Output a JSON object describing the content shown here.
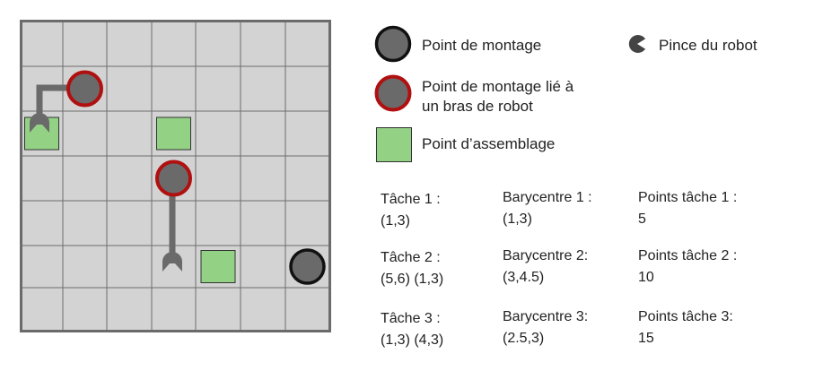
{
  "grid": {
    "cols": 7,
    "rows": 7
  },
  "colors": {
    "cell": "#d3d3d3",
    "gridline": "#6e6e6e",
    "border": "#6b6b6b",
    "mount_fill": "#6a6a6a",
    "mount_ring_free": "#111111",
    "mount_ring_linked": "#b01010",
    "assembly_fill": "#93d285",
    "arm": "#6a6a6a"
  },
  "board_items": {
    "mounts": [
      {
        "col": 1,
        "row": 1,
        "linked": true
      },
      {
        "col": 3,
        "row": 3,
        "linked": true
      },
      {
        "col": 6,
        "row": 5,
        "linked": false
      }
    ],
    "assembly_points": [
      {
        "col": 0,
        "row": 2
      },
      {
        "col": 3,
        "row": 2
      },
      {
        "col": 4,
        "row": 5
      }
    ]
  },
  "legend": {
    "mount": "Point de montage",
    "mount_linked": "Point de montage lié à\nun bras de robot",
    "assembly": "Point d’assemblage",
    "gripper": "Pince du robot"
  },
  "tasks": [
    {
      "task": "Tâche 1 :\n(1,3)",
      "barycenter": "Barycentre 1 :\n(1,3)",
      "points": "Points tâche 1 :\n5"
    },
    {
      "task": "Tâche 2 :\n(5,6) (1,3)",
      "barycenter": "Barycentre 2:\n(3,4.5)",
      "points": "Points tâche 2 :\n10"
    },
    {
      "task": "Tâche 3 :\n(1,3) (4,3)",
      "barycenter": "Barycentre 3:\n(2.5,3)",
      "points": "Points tâche 3:\n15"
    }
  ]
}
